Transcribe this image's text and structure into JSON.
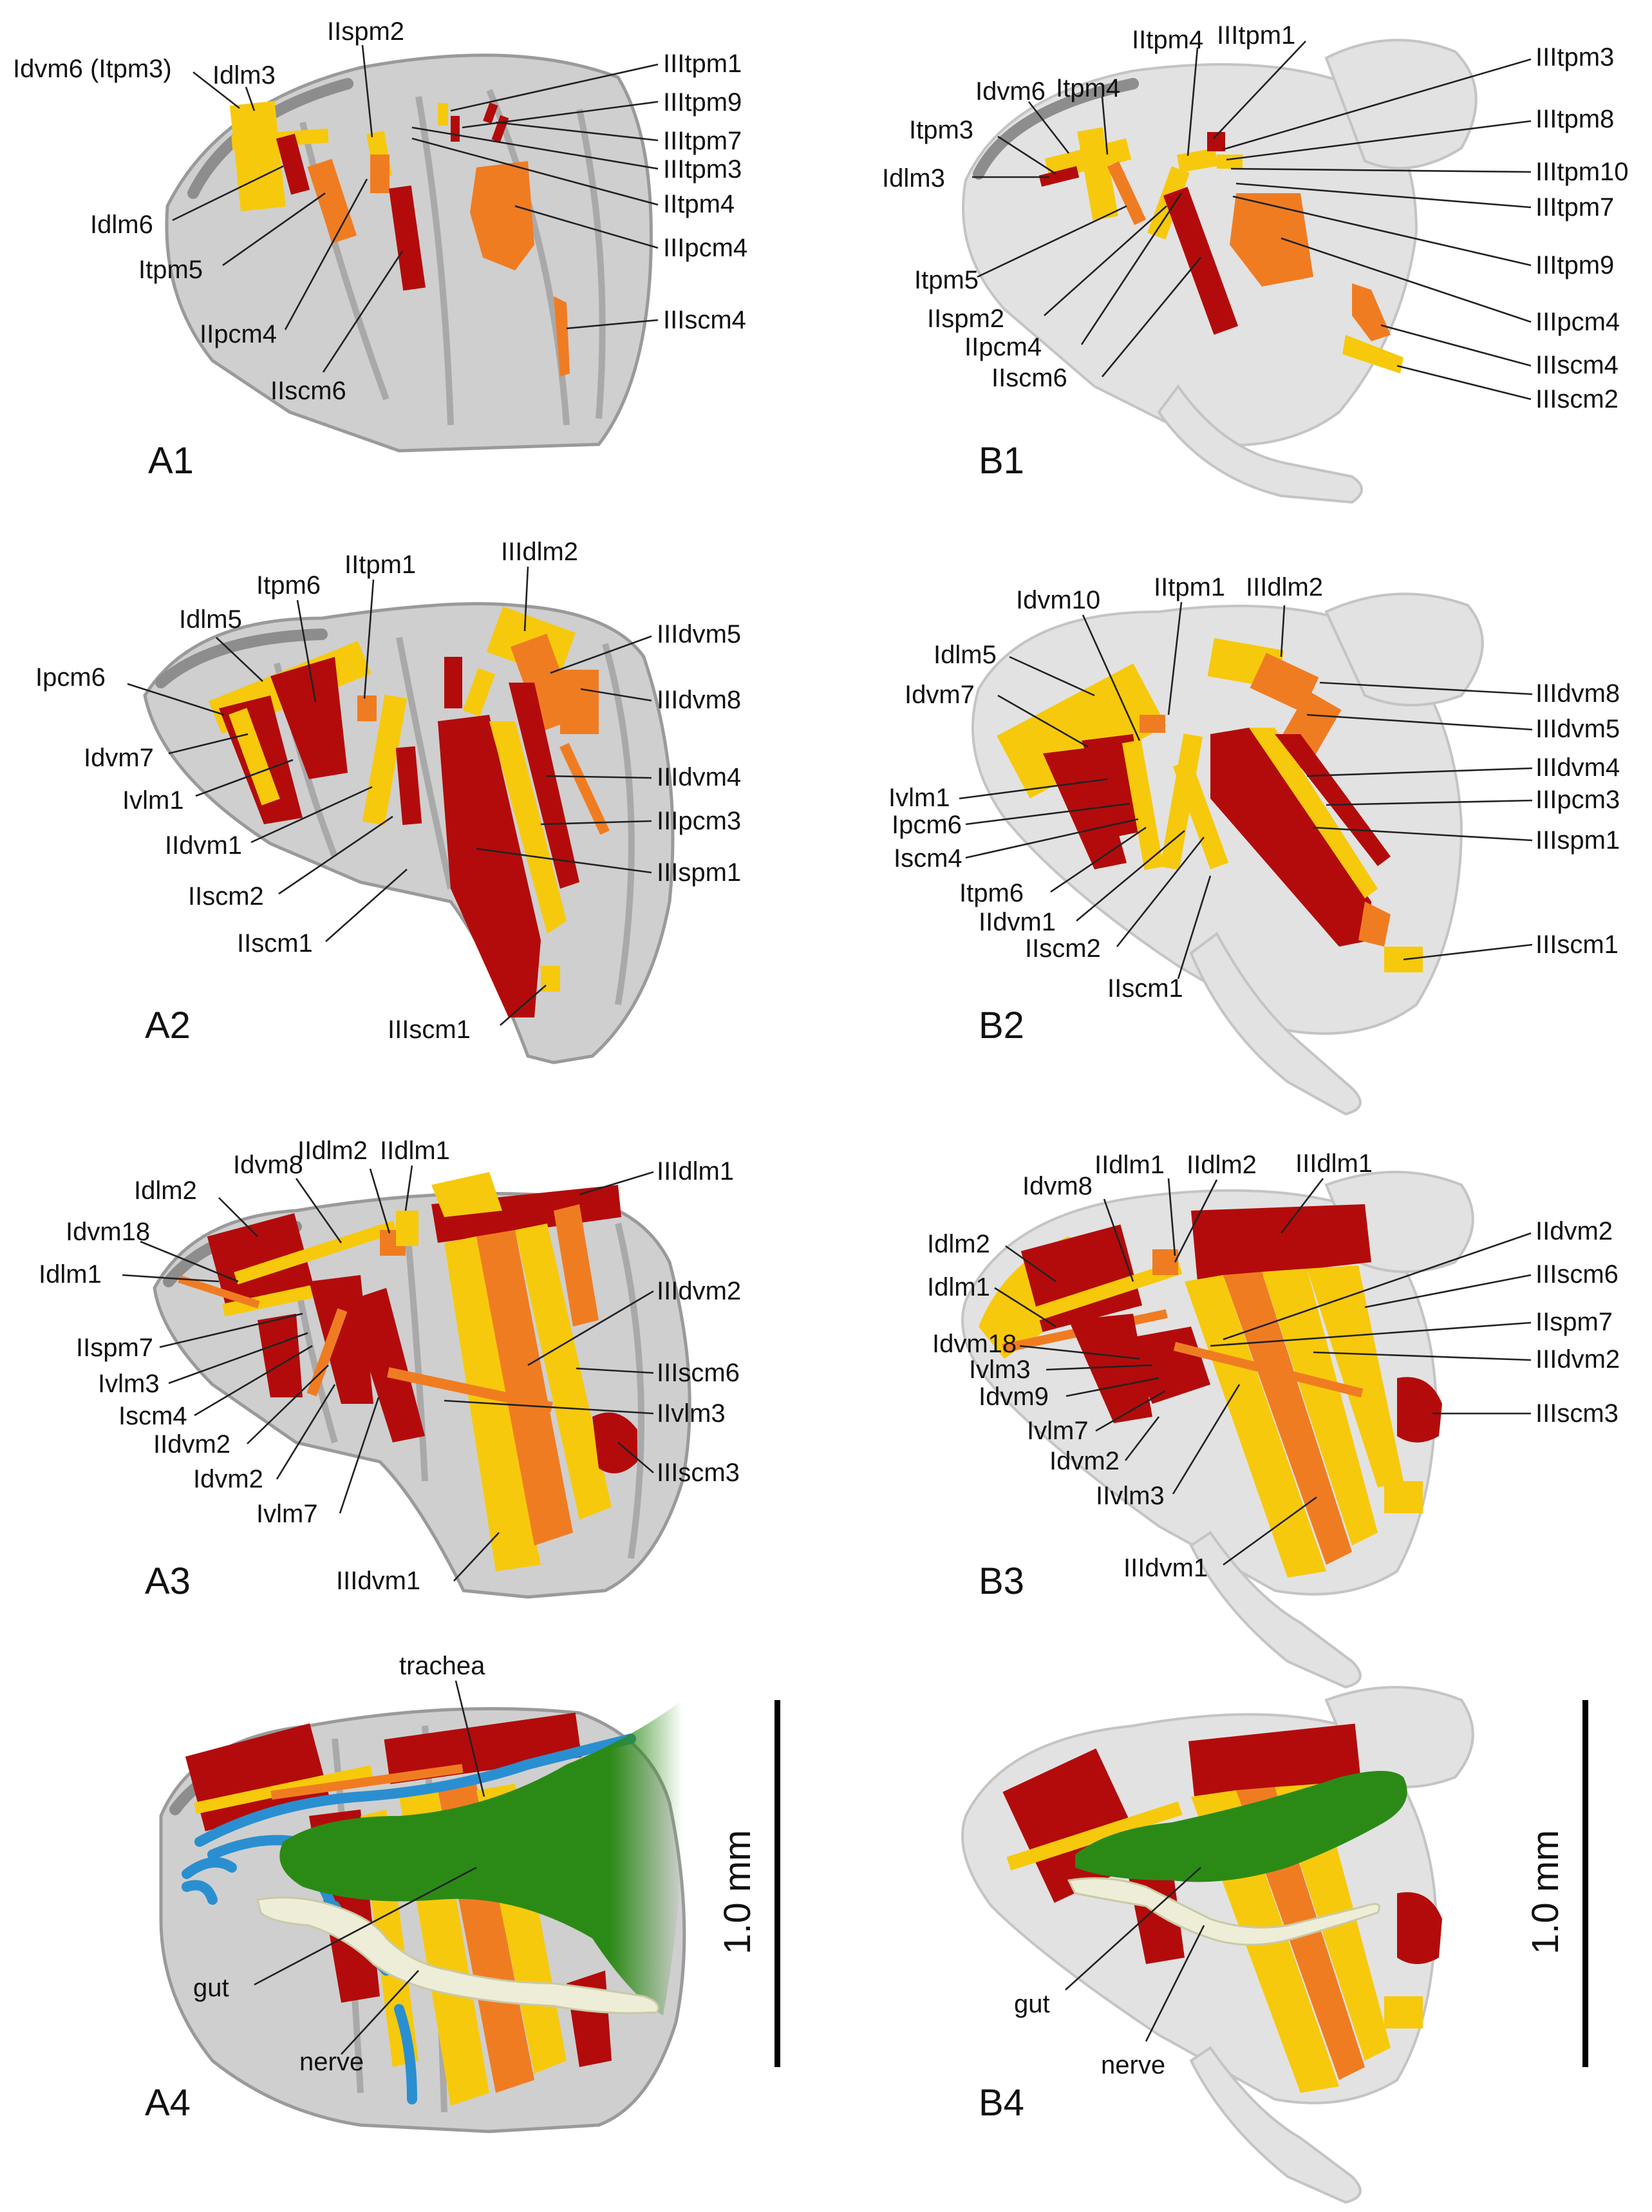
{
  "panels": {
    "A1": {
      "tag": "A1",
      "labels": [
        "Idvm6 (Itpm3)",
        "Idlm3",
        "IIspm2",
        "IIItpm1",
        "IIItpm9",
        "IIItpm7",
        "IIItpm3",
        "IItpm4",
        "IIIpcm4",
        "IIIscm4",
        "Idlm6",
        "Itpm5",
        "IIpcm4",
        "IIscm6"
      ]
    },
    "B1": {
      "tag": "B1",
      "labels": [
        "IIItpm1",
        "IItpm4",
        "Itpm4",
        "Idvm6",
        "Itpm3",
        "Idlm3",
        "IIItpm3",
        "IIItpm8",
        "IIItpm10",
        "IIItpm7",
        "IIItpm9",
        "IIIpcm4",
        "IIIscm4",
        "IIIscm2",
        "Itpm5",
        "IIspm2",
        "IIpcm4",
        "IIscm6"
      ]
    },
    "A2": {
      "tag": "A2",
      "labels": [
        "IIIdlm2",
        "IItpm1",
        "Itpm6",
        "Idlm5",
        "Ipcm6",
        "IIIdvm5",
        "IIIdvm8",
        "IIIdvm4",
        "IIIpcm3",
        "IIIspm1",
        "Idvm7",
        "Ivlm1",
        "IIdvm1",
        "IIscm2",
        "IIscm1",
        "IIIscm1"
      ]
    },
    "B2": {
      "tag": "B2",
      "labels": [
        "IItpm1",
        "IIIdlm2",
        "Idvm10",
        "Idlm5",
        "Idvm7",
        "IIIdvm8",
        "IIIdvm5",
        "IIIdvm4",
        "IIIpcm3",
        "IIIspm1",
        "Ivlm1",
        "Ipcm6",
        "Iscm4",
        "Itpm6",
        "IIdvm1",
        "IIscm2",
        "IIscm1",
        "IIIscm1"
      ]
    },
    "A3": {
      "tag": "A3",
      "labels": [
        "IIdlm2",
        "IIdlm1",
        "Idvm8",
        "Idlm2",
        "Idvm18",
        "Idlm1",
        "IIIdlm1",
        "IIIdvm2",
        "IIIscm6",
        "IIvlm3",
        "IIIscm3",
        "IIspm7",
        "Ivlm3",
        "Iscm4",
        "IIdvm2",
        "Idvm2",
        "Ivlm7",
        "IIIdvm1"
      ]
    },
    "B3": {
      "tag": "B3",
      "labels": [
        "IIdlm1",
        "IIdlm2",
        "IIIdlm1",
        "Idvm8",
        "Idlm2",
        "Idlm1",
        "IIdvm2",
        "IIIscm6",
        "IIspm7",
        "IIIdvm2",
        "IIIscm3",
        "Idvm18",
        "Ivlm3",
        "Idvm9",
        "Ivlm7",
        "Idvm2",
        "IIvlm3",
        "IIIdvm1"
      ]
    },
    "A4": {
      "tag": "A4",
      "labels": [
        "trachea",
        "gut",
        "nerve"
      ],
      "scale": "1.0 mm"
    },
    "B4": {
      "tag": "B4",
      "labels": [
        "gut",
        "nerve"
      ],
      "scale": "1.0 mm"
    }
  },
  "colors": {
    "red_muscle": "#b30b0b",
    "orange_muscle": "#f07c22",
    "yellow_muscle": "#f7c90c",
    "trachea": "#2a8fd0",
    "gut": "#2b8a16",
    "nerve": "#eeeed8",
    "cuticle": "#cfcfcf"
  }
}
